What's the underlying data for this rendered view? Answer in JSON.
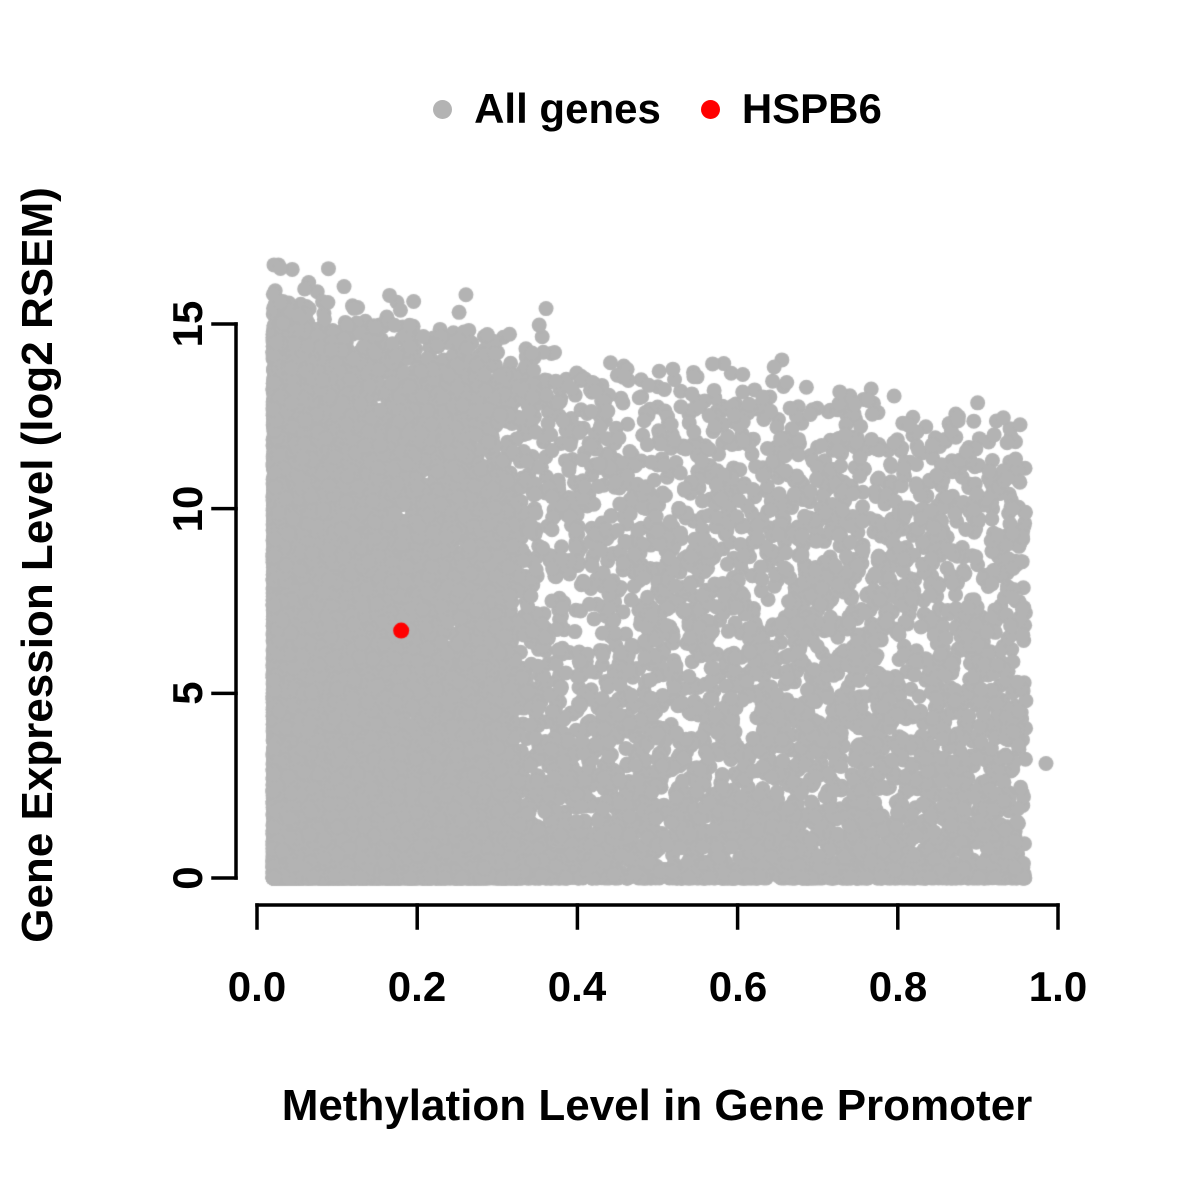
{
  "chart_data": {
    "type": "scatter",
    "title": "",
    "xlabel": "Methylation Level in Gene Promoter",
    "ylabel": "Gene Expression Level (log2 RSEM)",
    "xlim": [
      0,
      1
    ],
    "ylim": [
      0,
      16.6
    ],
    "grid": false,
    "legend_position": "top-center",
    "x_ticks": [
      0,
      0.2,
      0.4,
      0.6,
      0.8,
      1
    ],
    "x_tick_labels": [
      "0.0",
      "0.2",
      "0.4",
      "0.6",
      "0.8",
      "1.0"
    ],
    "y_ticks": [
      0,
      5,
      10,
      15
    ],
    "y_tick_labels": [
      "0",
      "5",
      "10",
      "15"
    ],
    "axis_color": "#000000",
    "series": [
      {
        "name": "All genes",
        "color": "#b3b3b3",
        "role": "background-cloud",
        "n_points": 14000,
        "seed": 1337,
        "x_range": [
          0.02,
          0.96
        ],
        "y_range": [
          0,
          16.6
        ],
        "density_model": {
          "left_cluster_fraction": 0.52,
          "left_cluster_x_span": 0.3,
          "left_cluster_exponent": 1.9,
          "broad_exponent": 1.15,
          "top_envelope_intercept": 15.2,
          "top_envelope_slope": -3.6,
          "top_envelope_noise": 1.8,
          "y_exponent": 1.45,
          "zero_expression_fraction": 0.05,
          "high_outlier_fraction": 0.003,
          "high_outlier_boost": 1.4
        },
        "isolated_points": [
          [
            0.985,
            3.1
          ]
        ]
      },
      {
        "name": "HSPB6",
        "color": "#ff0000",
        "role": "highlight",
        "points": [
          [
            0.18,
            6.7
          ]
        ]
      }
    ]
  }
}
